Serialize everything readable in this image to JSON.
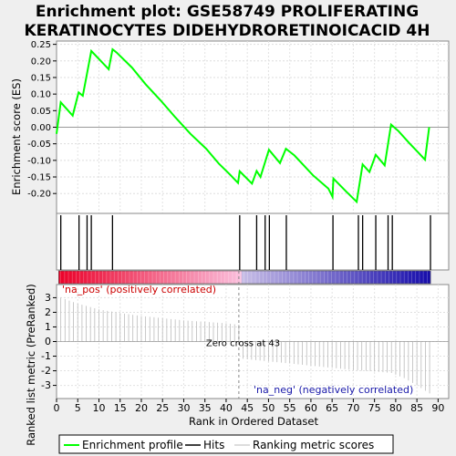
{
  "chart_data": {
    "type": "line",
    "title_line1": "Enrichment plot: GSE58749 PROLIFERATING",
    "title_line2": "KERATINOCYTES DIDEHYDRORETINOICACID 4H",
    "es_panel": {
      "ylabel": "Enrichment score (ES)",
      "ylim": [
        -0.26,
        0.26
      ],
      "yticks": [
        0.25,
        0.2,
        0.15,
        0.1,
        0.05,
        0.0,
        -0.05,
        -0.1,
        -0.15,
        -0.2
      ],
      "ytick_labels": [
        "0.25",
        "0.20",
        "0.15",
        "0.10",
        "0.05",
        "0.00",
        "-0.05",
        "-0.10",
        "-0.15",
        "-0.20"
      ],
      "points": [
        [
          0,
          -0.02
        ],
        [
          1,
          0.075
        ],
        [
          3.8,
          0.035
        ],
        [
          5.2,
          0.105
        ],
        [
          6.2,
          0.095
        ],
        [
          8.2,
          0.23
        ],
        [
          12.3,
          0.175
        ],
        [
          13.2,
          0.235
        ],
        [
          14.2,
          0.225
        ],
        [
          17.8,
          0.18
        ],
        [
          21,
          0.13
        ],
        [
          24.6,
          0.08
        ],
        [
          28,
          0.03
        ],
        [
          31.6,
          -0.02
        ],
        [
          35.3,
          -0.065
        ],
        [
          38.3,
          -0.11
        ],
        [
          40.7,
          -0.14
        ],
        [
          42.8,
          -0.168
        ],
        [
          43.2,
          -0.133
        ],
        [
          46.1,
          -0.17
        ],
        [
          47.2,
          -0.132
        ],
        [
          48.1,
          -0.15
        ],
        [
          50.1,
          -0.068
        ],
        [
          52.7,
          -0.108
        ],
        [
          54.1,
          -0.065
        ],
        [
          56.1,
          -0.085
        ],
        [
          60.5,
          -0.145
        ],
        [
          64.1,
          -0.185
        ],
        [
          65.1,
          -0.21
        ],
        [
          65.3,
          -0.155
        ],
        [
          68.4,
          -0.195
        ],
        [
          70.8,
          -0.225
        ],
        [
          72.2,
          -0.112
        ],
        [
          73.8,
          -0.135
        ],
        [
          75.3,
          -0.083
        ],
        [
          77.4,
          -0.115
        ],
        [
          78.9,
          0.008
        ],
        [
          80.7,
          -0.012
        ],
        [
          83.2,
          -0.048
        ],
        [
          85.6,
          -0.08
        ],
        [
          86.9,
          -0.098
        ],
        [
          87.9,
          0.0
        ]
      ]
    },
    "hits": [
      1,
      5.3,
      7.2,
      8.2,
      13.2,
      43.2,
      47.2,
      49.2,
      50.2,
      54.2,
      65.2,
      71.2,
      72.2,
      75.3,
      78.2,
      79.2,
      88.2
    ],
    "rank_panel": {
      "ylabel": "Ranked list metric (PreRanked)",
      "xlabel": "Rank in Ordered Dataset",
      "ylim": [
        -3.9,
        3.9
      ],
      "yticks": [
        3,
        2,
        1,
        0,
        -1,
        -2,
        -3
      ],
      "xlim": [
        0,
        92.5
      ],
      "xticks": [
        0,
        5,
        10,
        15,
        20,
        25,
        30,
        35,
        40,
        45,
        50,
        55,
        60,
        65,
        70,
        75,
        80,
        85,
        90
      ],
      "pos_label": "'na_pos' (positively correlated)",
      "neg_label": "'na_neg' (negatively correlated)",
      "zero_cross_label": "Zero cross at 43",
      "zero_cross": 43,
      "metric_profile": [
        [
          0.5,
          3.05
        ],
        [
          2,
          2.9
        ],
        [
          5,
          2.6
        ],
        [
          10,
          2.2
        ],
        [
          15,
          1.95
        ],
        [
          20,
          1.75
        ],
        [
          25,
          1.6
        ],
        [
          30,
          1.45
        ],
        [
          35,
          1.35
        ],
        [
          40,
          1.25
        ],
        [
          43,
          1.15
        ],
        [
          43,
          -1.15
        ],
        [
          48,
          -1.3
        ],
        [
          55,
          -1.5
        ],
        [
          60,
          -1.65
        ],
        [
          65,
          -1.8
        ],
        [
          70,
          -1.95
        ],
        [
          75,
          -2.05
        ],
        [
          79,
          -2.15
        ],
        [
          82,
          -2.5
        ],
        [
          85,
          -3.0
        ],
        [
          88,
          -3.55
        ]
      ]
    },
    "legend": {
      "entries": [
        "Enrichment profile",
        "Hits",
        "Ranking metric scores"
      ],
      "colors": [
        "#00ff00",
        "#000000",
        "#bbbbbb"
      ],
      "placement": "bottom"
    },
    "colors": {
      "es_line": "#00ff00",
      "positive": "#ff0000",
      "negative": "#0000ff",
      "zero_line": "#888888"
    }
  }
}
